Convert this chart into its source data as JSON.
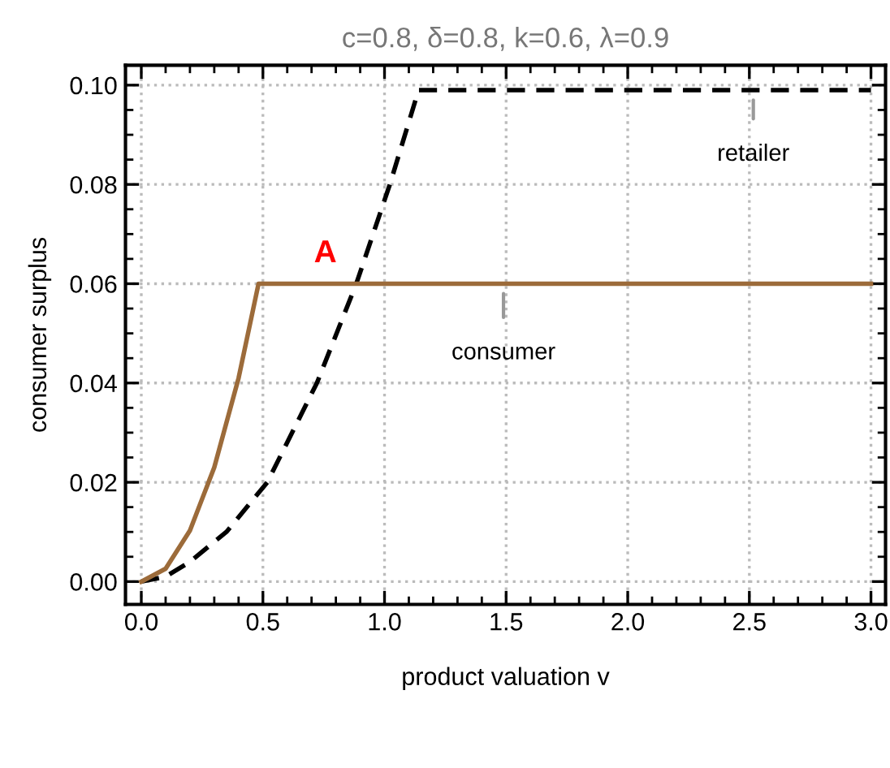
{
  "chart_data": {
    "type": "line",
    "title": "c=0.8, δ=0.8, k=0.6, λ=0.9",
    "xlabel": "product valuation v",
    "ylabel": "consumer surplus",
    "series": [
      {
        "name": "retailer",
        "color": "#000000",
        "line_style": "dashed",
        "x": [
          0,
          0.1,
          0.2,
          0.35,
          0.518,
          0.722,
          0.884,
          1.022,
          1.14,
          3.0
        ],
        "values": [
          0,
          0.001,
          0.004,
          0.01,
          0.02,
          0.04,
          0.06,
          0.08,
          0.099,
          0.099
        ]
      },
      {
        "name": "consumer",
        "color": "#9c6b3a",
        "line_style": "solid",
        "x": [
          0,
          0.1,
          0.2,
          0.3,
          0.4,
          0.482,
          3.0
        ],
        "values": [
          0,
          0.0026,
          0.0103,
          0.023,
          0.041,
          0.06,
          0.06
        ]
      }
    ],
    "annotations": [
      "A"
    ],
    "xlim": [
      -0.065,
      3.06
    ],
    "ylim": [
      -0.0046,
      0.104
    ],
    "xticks": [
      {
        "value": 0,
        "label": "0.0"
      },
      0.5,
      {
        "value": 1,
        "label": "1.0"
      },
      1.5,
      {
        "value": 2,
        "label": "2.0"
      },
      2.5,
      {
        "value": 3,
        "label": "3.0"
      }
    ],
    "yticks": [
      {
        "value": 0,
        "label": "0.00"
      },
      {
        "value": 0.02,
        "label": "0.02"
      },
      {
        "value": 0.04,
        "label": "0.04"
      },
      {
        "value": 0.06,
        "label": "0.06"
      },
      {
        "value": 0.08,
        "label": "0.08"
      },
      {
        "value": 0.1,
        "label": "0.10"
      }
    ],
    "grid": true,
    "legend": false,
    "marker": "none"
  }
}
